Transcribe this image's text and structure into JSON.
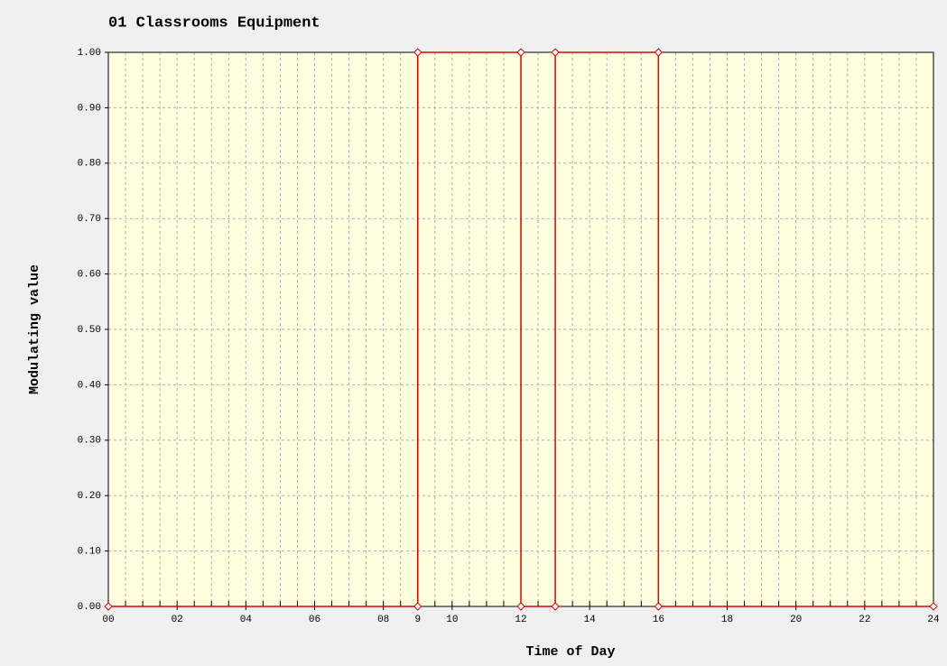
{
  "chart_data": {
    "type": "line",
    "title": "01 Classrooms Equipment",
    "x_label": "Time of Day",
    "y_label": "Modulating value",
    "x": [
      0,
      9,
      9,
      12,
      12,
      13,
      13,
      16,
      16,
      24
    ],
    "series": [
      {
        "name": "01 Classrooms Equipment",
        "color": "#e00000",
        "values": [
          0,
          0,
          1,
          1,
          0,
          0,
          1,
          1,
          0,
          0
        ]
      }
    ],
    "xlim": [
      0,
      24
    ],
    "xticks": [
      {
        "value": 0,
        "label": "00"
      },
      {
        "value": 2,
        "label": "02"
      },
      {
        "value": 4,
        "label": "04"
      },
      {
        "value": 6,
        "label": "06"
      },
      {
        "value": 8,
        "label": "08"
      },
      9,
      10,
      12,
      14,
      16,
      18,
      20,
      22,
      24
    ],
    "xminor": 0.5,
    "ylim": [
      0,
      1
    ],
    "yticks": [
      {
        "value": 0,
        "label": "0.00"
      },
      {
        "value": 0.1,
        "label": "0.10"
      },
      {
        "value": 0.2,
        "label": "0.20"
      },
      {
        "value": 0.3,
        "label": "0.30"
      },
      {
        "value": 0.4,
        "label": "0.40"
      },
      {
        "value": 0.5,
        "label": "0.50"
      },
      {
        "value": 0.6,
        "label": "0.60"
      },
      {
        "value": 0.7,
        "label": "0.70"
      },
      {
        "value": 0.8,
        "label": "0.80"
      },
      {
        "value": 0.9,
        "label": "0.90"
      },
      {
        "value": 1,
        "label": "1.00"
      }
    ],
    "grid": true
  }
}
